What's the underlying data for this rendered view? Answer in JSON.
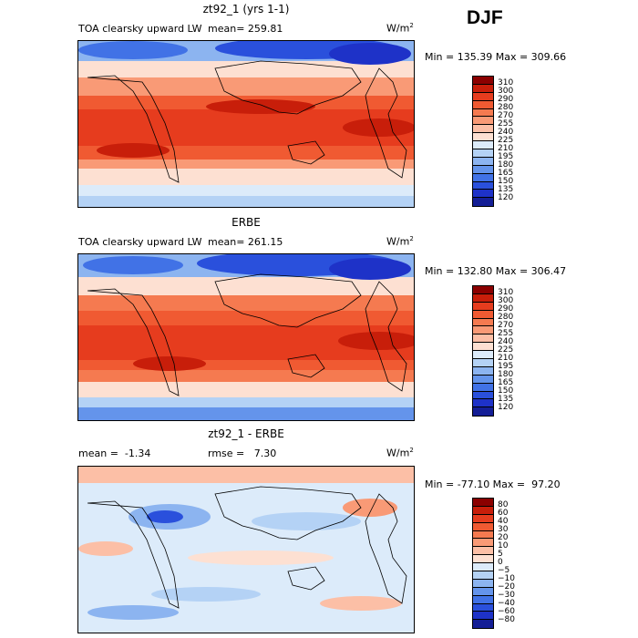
{
  "season": "DJF",
  "panels": [
    {
      "title": "zt92_1 (yrs 1-1)",
      "variable": "TOA clearsky upward LW",
      "stat_left": "",
      "stat_text": "mean= 259.81",
      "units_base": "W/m",
      "units_exp": "2",
      "minmax": "Min = 135.39 Max = 309.66",
      "type": "absolute",
      "colors": [
        "#8b0000",
        "#c81e0a",
        "#e63c1e",
        "#f05a32",
        "#f57a50",
        "#f99a76",
        "#fcbfa6",
        "#fde0d2",
        "#dcebfa",
        "#b4d2f5",
        "#8cb4f0",
        "#6494eb",
        "#4172e6",
        "#2a50dc",
        "#1e32c8",
        "#141e96"
      ],
      "labels": [
        "310",
        "300",
        "290",
        "280",
        "270",
        "255",
        "240",
        "225",
        "210",
        "195",
        "180",
        "165",
        "150",
        "135",
        "120"
      ]
    },
    {
      "title": "ERBE",
      "variable": "TOA clearsky upward LW",
      "stat_left": "",
      "stat_text": "mean= 261.15",
      "units_base": "W/m",
      "units_exp": "2",
      "minmax": "Min = 132.80 Max = 306.47",
      "type": "absolute",
      "colors": [
        "#8b0000",
        "#c81e0a",
        "#e63c1e",
        "#f05a32",
        "#f57a50",
        "#f99a76",
        "#fcbfa6",
        "#fde0d2",
        "#dcebfa",
        "#b4d2f5",
        "#8cb4f0",
        "#6494eb",
        "#4172e6",
        "#2a50dc",
        "#1e32c8",
        "#141e96"
      ],
      "labels": [
        "310",
        "300",
        "290",
        "280",
        "270",
        "255",
        "240",
        "225",
        "210",
        "195",
        "180",
        "165",
        "150",
        "135",
        "120"
      ]
    },
    {
      "title": "zt92_1 - ERBE",
      "variable": "",
      "stat_left": "mean =  -1.34",
      "stat_text": "rmse =   7.30",
      "units_base": "W/m",
      "units_exp": "2",
      "minmax": "Min = -77.10 Max =  97.20",
      "type": "difference",
      "colors": [
        "#8b0000",
        "#c81e0a",
        "#e63c1e",
        "#f05a32",
        "#f57a50",
        "#f99a76",
        "#fcbfa6",
        "#fde0d2",
        "#dcebfa",
        "#b4d2f5",
        "#8cb4f0",
        "#6494eb",
        "#4172e6",
        "#2a50dc",
        "#1e32c8",
        "#141e96"
      ],
      "labels": [
        "80",
        "60",
        "40",
        "30",
        "20",
        "10",
        "5",
        "0",
        "−5",
        "−10",
        "−20",
        "−30",
        "−40",
        "−60",
        "−80"
      ]
    }
  ]
}
